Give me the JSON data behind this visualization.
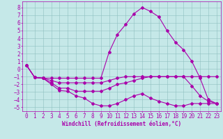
{
  "xlabel": "Windchill (Refroidissement éolien,°C)",
  "bg_color": "#c5e8e8",
  "line_color": "#aa00aa",
  "grid_color": "#8fbfbf",
  "xlim": [
    -0.5,
    23.5
  ],
  "ylim": [
    -5.5,
    8.8
  ],
  "xticks": [
    0,
    1,
    2,
    3,
    4,
    5,
    6,
    7,
    8,
    9,
    10,
    11,
    12,
    13,
    14,
    15,
    16,
    17,
    18,
    19,
    20,
    21,
    22,
    23
  ],
  "yticks": [
    8,
    7,
    6,
    5,
    4,
    3,
    2,
    1,
    0,
    -1,
    -2,
    -3,
    -4,
    -5
  ],
  "line1_x": [
    0,
    1,
    2,
    3,
    4,
    5,
    6,
    7,
    8,
    9,
    10,
    11,
    12,
    13,
    14,
    15,
    16,
    17,
    18,
    19,
    20,
    21,
    22,
    23
  ],
  "line1_y": [
    0.5,
    -1.1,
    -1.2,
    -2.0,
    -2.8,
    -2.9,
    -3.5,
    -3.8,
    -4.5,
    -4.8,
    -4.8,
    -4.5,
    -4.0,
    -3.5,
    -3.2,
    -3.8,
    -4.2,
    -4.5,
    -4.8,
    -4.8,
    -4.5,
    -4.5,
    -4.5,
    -4.5
  ],
  "line2_x": [
    0,
    1,
    2,
    3,
    4,
    5,
    6,
    7,
    8,
    9,
    10,
    11,
    12,
    13,
    14,
    15,
    16,
    17,
    18,
    19,
    20,
    21,
    22,
    23
  ],
  "line2_y": [
    0.5,
    -1.1,
    -1.2,
    -1.8,
    -2.5,
    -2.5,
    -2.9,
    -2.9,
    -2.9,
    -2.9,
    -2.5,
    -2.0,
    -1.8,
    -1.5,
    -1.2,
    -1.0,
    -1.0,
    -1.0,
    -1.0,
    -1.0,
    -2.2,
    -3.5,
    -4.2,
    -4.5
  ],
  "line3_x": [
    0,
    1,
    2,
    3,
    4,
    5,
    6,
    7,
    8,
    9,
    10,
    11,
    12,
    13,
    14,
    15,
    16,
    17,
    18,
    19,
    20,
    21,
    22,
    23
  ],
  "line3_y": [
    0.5,
    -1.1,
    -1.2,
    -1.5,
    -1.8,
    -1.8,
    -1.8,
    -1.8,
    -1.8,
    -1.8,
    -1.5,
    -1.2,
    -1.0,
    -1.0,
    -1.0,
    -1.0,
    -1.0,
    -1.0,
    -1.0,
    -1.0,
    -1.0,
    -1.0,
    -1.0,
    -1.0
  ],
  "line4_x": [
    0,
    1,
    2,
    3,
    4,
    5,
    6,
    7,
    8,
    9,
    10,
    11,
    12,
    13,
    14,
    15,
    16,
    17,
    18,
    19,
    20,
    21,
    22,
    23
  ],
  "line4_y": [
    0.5,
    -1.1,
    -1.2,
    -1.2,
    -1.2,
    -1.2,
    -1.2,
    -1.2,
    -1.2,
    -1.2,
    2.2,
    4.5,
    5.8,
    7.2,
    8.0,
    7.5,
    6.8,
    5.0,
    3.5,
    2.5,
    1.0,
    -1.2,
    -4.0,
    -4.5
  ],
  "tick_fontsize": 5.5,
  "xlabel_fontsize": 5.5,
  "marker_size": 2.0
}
